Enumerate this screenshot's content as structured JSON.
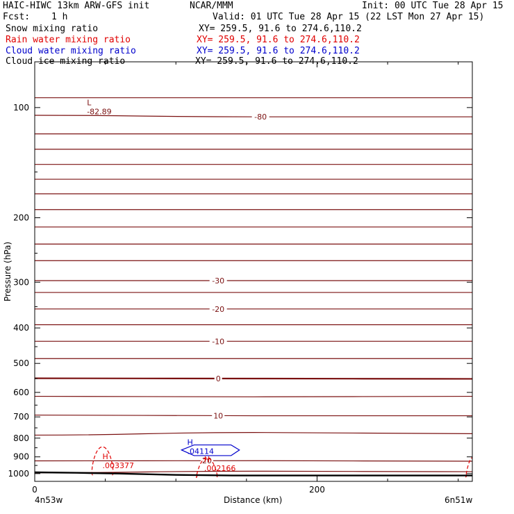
{
  "header": {
    "title_left": "HAIC-HIWC 13km ARW-GFS init",
    "title_mid": "NCAR/MMM",
    "init": "Init: 00 UTC Tue 28 Apr 15",
    "fcst_label": "Fcst:",
    "fcst_value": "1 h",
    "valid": "Valid: 01 UTC Tue 28 Apr 15 (22 LST Mon 27 Apr 15)"
  },
  "fields": [
    {
      "name": "Snow mixing ratio",
      "xy": "XY= 259.5, 91.6 to 274.6,110.2",
      "color": "#000000"
    },
    {
      "name": "Rain water mixing ratio",
      "xy": "XY= 259.5, 91.6 to 274.6,110.2",
      "color": "#e00000"
    },
    {
      "name": "Cloud water mixing ratio",
      "xy": "XY= 259.5, 91.6 to 274.6,110.2",
      "color": "#0000cc"
    },
    {
      "name": "Cloud ice mixing ratio",
      "xy": "XY= 259.5, 91.6 to 274.6,110.2",
      "color": "#000000"
    }
  ],
  "colors": {
    "temperature": "#7a1010",
    "rain": "#e00000",
    "cloud_water": "#0000cc",
    "ground": "#000000"
  },
  "chart_data": {
    "type": "cross-section",
    "xlabel": "Distance (km)",
    "ylabel": "Pressure (hPa)",
    "xlim": [
      0,
      310
    ],
    "ylim": [
      1050,
      75
    ],
    "y_scale": "log",
    "x_ticks": [
      0,
      200
    ],
    "x_tick_labels": [
      "0",
      "200"
    ],
    "y_ticks": [
      100,
      200,
      300,
      400,
      500,
      600,
      700,
      800,
      900,
      1000
    ],
    "y_tick_labels": [
      "100",
      "200",
      "300",
      "400",
      "500",
      "600",
      "700",
      "800",
      "900",
      "1000"
    ],
    "x_endpoint_labels": [
      "4n53w",
      "6n51w"
    ],
    "temperature_contours": [
      {
        "level": -80,
        "label": "-80",
        "pressure": [
          105,
          106,
          106
        ]
      },
      {
        "level": -85,
        "pressure": [
          94,
          94,
          94
        ]
      },
      {
        "level": -75,
        "pressure": [
          118,
          118,
          118
        ]
      },
      {
        "level": -70,
        "pressure": [
          130,
          130,
          130
        ]
      },
      {
        "level": -65,
        "pressure": [
          143,
          143,
          143
        ]
      },
      {
        "level": -60,
        "pressure": [
          157,
          157,
          157
        ]
      },
      {
        "level": -55,
        "pressure": [
          172,
          172,
          172
        ]
      },
      {
        "level": -50,
        "pressure": [
          190,
          190,
          190
        ]
      },
      {
        "level": -45,
        "pressure": [
          212,
          212,
          212
        ]
      },
      {
        "level": -40,
        "pressure": [
          236,
          236,
          236
        ]
      },
      {
        "level": -35,
        "pressure": [
          262,
          262,
          262
        ]
      },
      {
        "level": -30,
        "label": "-30",
        "pressure": [
          297,
          297,
          297
        ]
      },
      {
        "level": -25,
        "pressure": [
          320,
          320,
          320
        ]
      },
      {
        "level": -20,
        "label": "-20",
        "pressure": [
          355,
          355,
          355
        ]
      },
      {
        "level": -15,
        "pressure": [
          392,
          392,
          392
        ]
      },
      {
        "level": -10,
        "label": "-10",
        "pressure": [
          435,
          435,
          435
        ]
      },
      {
        "level": -5,
        "pressure": [
          485,
          485,
          485
        ]
      },
      {
        "level": 0,
        "label": "0",
        "pressure": [
          549,
          550,
          551
        ]
      },
      {
        "level": 5,
        "pressure": [
          615,
          617,
          615
        ]
      },
      {
        "level": 10,
        "label": "10",
        "pressure": [
          692,
          695,
          695
        ]
      },
      {
        "level": 15,
        "pressure": [
          785,
          772,
          778
        ]
      },
      {
        "level": 20,
        "label": "20",
        "pressure": [
          923,
          922,
          925
        ]
      },
      {
        "level": 25,
        "pressure": [
          995,
          985,
          988
        ]
      }
    ],
    "extrema": [
      {
        "type": "L",
        "value": "-82.89",
        "x": 37,
        "pressure": 102,
        "field": "temperature"
      },
      {
        "type": "H",
        "value": ".003377",
        "x": 48,
        "pressure": 945,
        "field": "rain"
      },
      {
        "type": "H",
        "value": ".002166",
        "x": 120,
        "pressure": 962,
        "field": "rain"
      },
      {
        "type": "H",
        "value": ".04114",
        "x": 108,
        "pressure": 865,
        "field": "cloud_water"
      }
    ],
    "surface_pressure": [
      992,
      995,
      1000,
      1008,
      1012,
      1012,
      1012
    ],
    "surface_x": [
      0,
      30,
      60,
      100,
      140,
      200,
      310
    ]
  }
}
